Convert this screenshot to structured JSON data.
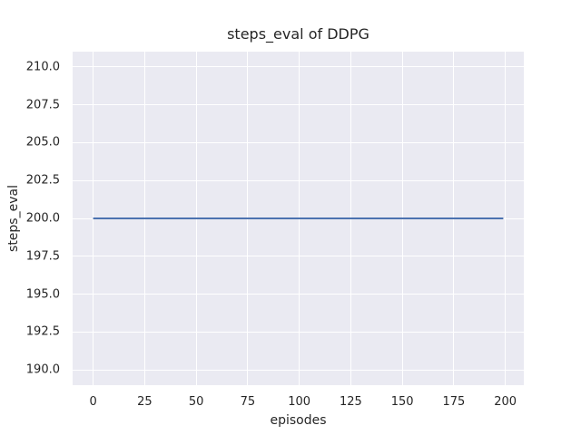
{
  "chart_data": {
    "type": "line",
    "title": "steps_eval of DDPG",
    "xlabel": "episodes",
    "ylabel": "steps_eval",
    "x_ticks": {
      "values": [
        0,
        25,
        50,
        75,
        100,
        125,
        150,
        175,
        200
      ],
      "labels": [
        "0",
        "25",
        "50",
        "75",
        "100",
        "125",
        "150",
        "175",
        "200"
      ]
    },
    "y_ticks": {
      "values": [
        190.0,
        192.5,
        195.0,
        197.5,
        200.0,
        202.5,
        205.0,
        207.5,
        210.0
      ],
      "labels": [
        "190.0",
        "192.5",
        "195.0",
        "197.5",
        "200.0",
        "202.5",
        "205.0",
        "207.5",
        "210.0"
      ]
    },
    "xlim": [
      -9.95,
      208.95
    ],
    "ylim": [
      189.0,
      211.0
    ],
    "grid": true,
    "legend": "none",
    "series": [
      {
        "name": "steps_eval",
        "color": "#4c72b0",
        "x": [
          0,
          199
        ],
        "y": [
          200,
          200
        ]
      }
    ],
    "plot_bg": "#eaeaf2",
    "grid_color": "#ffffff",
    "fig_bg": "#ffffff",
    "text_color": "#262626"
  }
}
